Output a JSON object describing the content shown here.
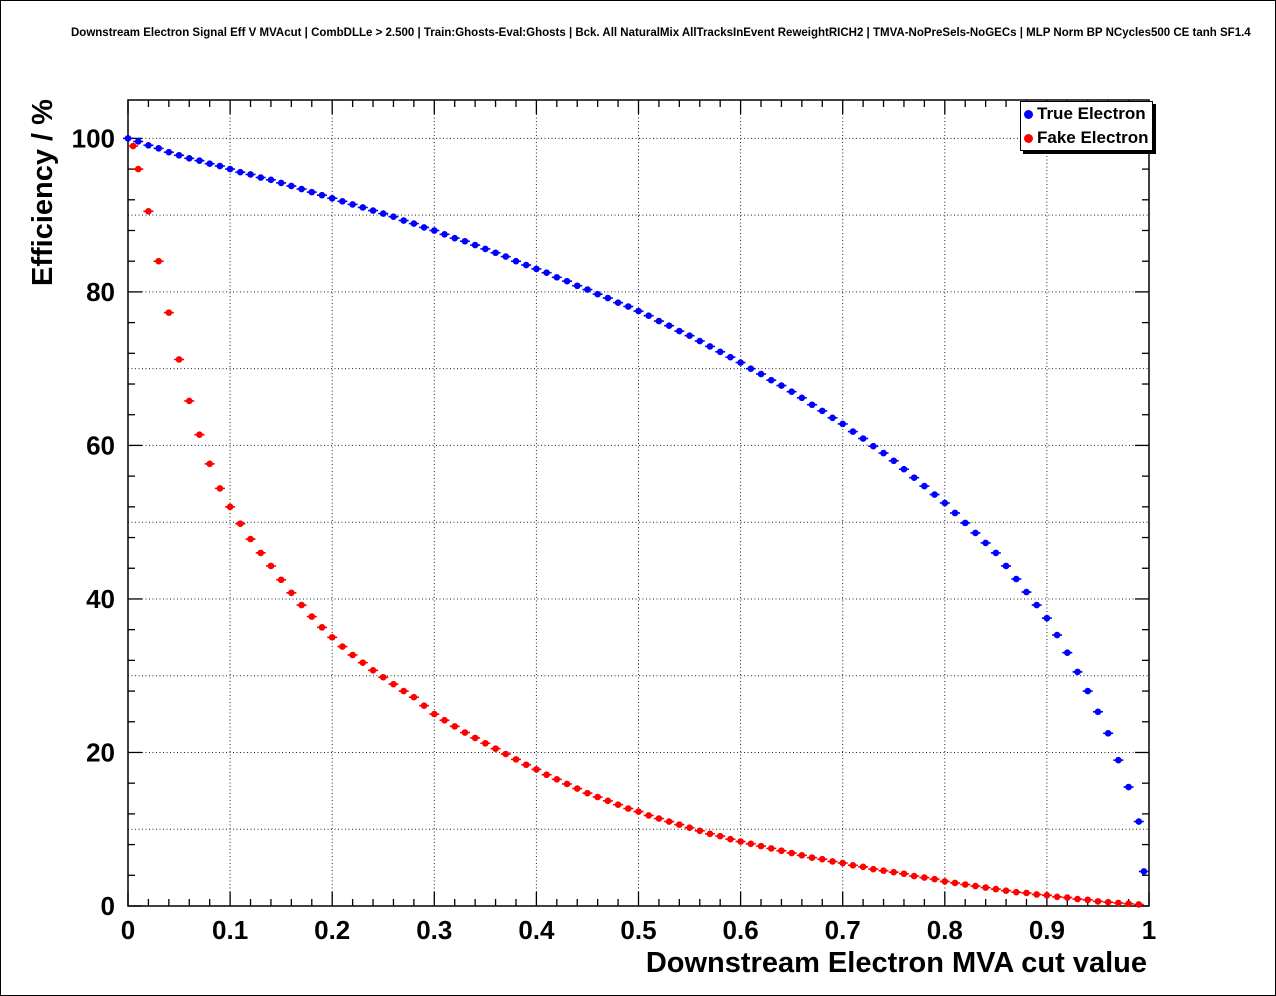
{
  "chart_data": {
    "type": "scatter",
    "title": "Downstream Electron Signal Eff V MVAcut | CombDLLe > 2.500 | Train:Ghosts-Eval:Ghosts | Bck. All NaturalMix AllTracksInEvent ReweightRICH2 | TMVA-NoPreSels-NoGECs | MLP Norm BP NCycles500 CE tanh SF1.4",
    "xlabel": "Downstream Electron MVA cut value",
    "ylabel": "Efficiency / %",
    "xlim": [
      0,
      1
    ],
    "ylim": [
      0,
      105
    ],
    "grid": true,
    "legend_position": "top-right",
    "x_ticks": [
      0,
      0.1,
      0.2,
      0.3,
      0.4,
      0.5,
      0.6,
      0.7,
      0.8,
      0.9,
      1
    ],
    "x_tick_labels": [
      "0",
      "0.1",
      "0.2",
      "0.3",
      "0.4",
      "0.5",
      "0.6",
      "0.7",
      "0.8",
      "0.9",
      "1"
    ],
    "y_ticks": [
      0,
      20,
      40,
      60,
      80,
      100
    ],
    "y_tick_labels": [
      "0",
      "20",
      "40",
      "60",
      "80",
      "100"
    ],
    "x_grid": [
      0.1,
      0.2,
      0.3,
      0.4,
      0.5,
      0.6,
      0.7,
      0.8,
      0.9
    ],
    "y_grid": [
      10,
      20,
      30,
      40,
      50,
      60,
      70,
      80,
      90,
      100
    ],
    "series": [
      {
        "name": "True Electron",
        "color": "#0000ff",
        "x": [
          0,
          0.01,
          0.02,
          0.03,
          0.04,
          0.05,
          0.06,
          0.07,
          0.08,
          0.09,
          0.1,
          0.11,
          0.12,
          0.13,
          0.14,
          0.15,
          0.16,
          0.17,
          0.18,
          0.19,
          0.2,
          0.21,
          0.22,
          0.23,
          0.24,
          0.25,
          0.26,
          0.27,
          0.28,
          0.29,
          0.3,
          0.31,
          0.32,
          0.33,
          0.34,
          0.35,
          0.36,
          0.37,
          0.38,
          0.39,
          0.4,
          0.41,
          0.42,
          0.43,
          0.44,
          0.45,
          0.46,
          0.47,
          0.48,
          0.49,
          0.5,
          0.51,
          0.52,
          0.53,
          0.54,
          0.55,
          0.56,
          0.57,
          0.58,
          0.59,
          0.6,
          0.61,
          0.62,
          0.63,
          0.64,
          0.65,
          0.66,
          0.67,
          0.68,
          0.69,
          0.7,
          0.71,
          0.72,
          0.73,
          0.74,
          0.75,
          0.76,
          0.77,
          0.78,
          0.79,
          0.8,
          0.81,
          0.82,
          0.83,
          0.84,
          0.85,
          0.86,
          0.87,
          0.88,
          0.89,
          0.9,
          0.91,
          0.92,
          0.93,
          0.94,
          0.95,
          0.96,
          0.97,
          0.98,
          0.99,
          0.995
        ],
        "values": [
          100.0,
          99.6,
          99.1,
          98.7,
          98.2,
          97.8,
          97.4,
          97.1,
          96.7,
          96.4,
          96.0,
          95.6,
          95.3,
          94.9,
          94.6,
          94.2,
          93.8,
          93.4,
          93.0,
          92.6,
          92.2,
          91.8,
          91.4,
          91.0,
          90.6,
          90.2,
          89.8,
          89.3,
          88.9,
          88.4,
          88.0,
          87.5,
          87.0,
          86.6,
          86.1,
          85.6,
          85.1,
          84.6,
          84.0,
          83.5,
          83.0,
          82.5,
          81.9,
          81.4,
          80.8,
          80.3,
          79.7,
          79.2,
          78.6,
          78.1,
          77.5,
          76.9,
          76.2,
          75.6,
          74.9,
          74.3,
          73.6,
          72.9,
          72.2,
          71.5,
          70.8,
          70.0,
          69.3,
          68.5,
          67.8,
          67.0,
          66.2,
          65.3,
          64.5,
          63.6,
          62.8,
          61.8,
          60.9,
          59.9,
          59.0,
          58.0,
          56.9,
          55.8,
          54.7,
          53.6,
          52.5,
          51.2,
          49.9,
          48.6,
          47.3,
          46.0,
          44.3,
          42.6,
          40.9,
          39.2,
          37.5,
          35.3,
          33.0,
          30.5,
          28.0,
          25.3,
          22.5,
          19.0,
          15.5,
          11.0,
          4.5
        ]
      },
      {
        "name": "Fake Electron",
        "color": "#ff0000",
        "x": [
          0.005,
          0.01,
          0.02,
          0.03,
          0.04,
          0.05,
          0.06,
          0.07,
          0.08,
          0.09,
          0.1,
          0.11,
          0.12,
          0.13,
          0.14,
          0.15,
          0.16,
          0.17,
          0.18,
          0.19,
          0.2,
          0.21,
          0.22,
          0.23,
          0.24,
          0.25,
          0.26,
          0.27,
          0.28,
          0.29,
          0.3,
          0.31,
          0.32,
          0.33,
          0.34,
          0.35,
          0.36,
          0.37,
          0.38,
          0.39,
          0.4,
          0.41,
          0.42,
          0.43,
          0.44,
          0.45,
          0.46,
          0.47,
          0.48,
          0.49,
          0.5,
          0.51,
          0.52,
          0.53,
          0.54,
          0.55,
          0.56,
          0.57,
          0.58,
          0.59,
          0.6,
          0.61,
          0.62,
          0.63,
          0.64,
          0.65,
          0.66,
          0.67,
          0.68,
          0.69,
          0.7,
          0.71,
          0.72,
          0.73,
          0.74,
          0.75,
          0.76,
          0.77,
          0.78,
          0.79,
          0.8,
          0.81,
          0.82,
          0.83,
          0.84,
          0.85,
          0.86,
          0.87,
          0.88,
          0.89,
          0.9,
          0.91,
          0.92,
          0.93,
          0.94,
          0.95,
          0.96,
          0.97,
          0.98,
          0.99
        ],
        "values": [
          99.0,
          96.0,
          90.5,
          84.0,
          77.3,
          71.2,
          65.8,
          61.4,
          57.6,
          54.4,
          52.0,
          49.8,
          47.8,
          46.0,
          44.3,
          42.5,
          40.8,
          39.2,
          37.7,
          36.3,
          35.0,
          33.8,
          32.7,
          31.7,
          30.7,
          29.8,
          28.9,
          28.0,
          27.2,
          26.1,
          25.0,
          24.2,
          23.4,
          22.6,
          21.9,
          21.2,
          20.5,
          19.8,
          19.1,
          18.4,
          17.8,
          17.1,
          16.5,
          15.9,
          15.3,
          14.7,
          14.2,
          13.7,
          13.2,
          12.7,
          12.3,
          11.8,
          11.4,
          11.0,
          10.6,
          10.2,
          9.8,
          9.4,
          9.1,
          8.7,
          8.4,
          8.1,
          7.8,
          7.5,
          7.2,
          6.9,
          6.6,
          6.3,
          6.1,
          5.8,
          5.6,
          5.3,
          5.1,
          4.8,
          4.6,
          4.4,
          4.2,
          3.9,
          3.7,
          3.5,
          3.2,
          3.0,
          2.8,
          2.6,
          2.4,
          2.2,
          2.0,
          1.8,
          1.7,
          1.5,
          1.4,
          1.2,
          1.1,
          0.9,
          0.8,
          0.6,
          0.5,
          0.4,
          0.3,
          0.2
        ]
      }
    ]
  }
}
